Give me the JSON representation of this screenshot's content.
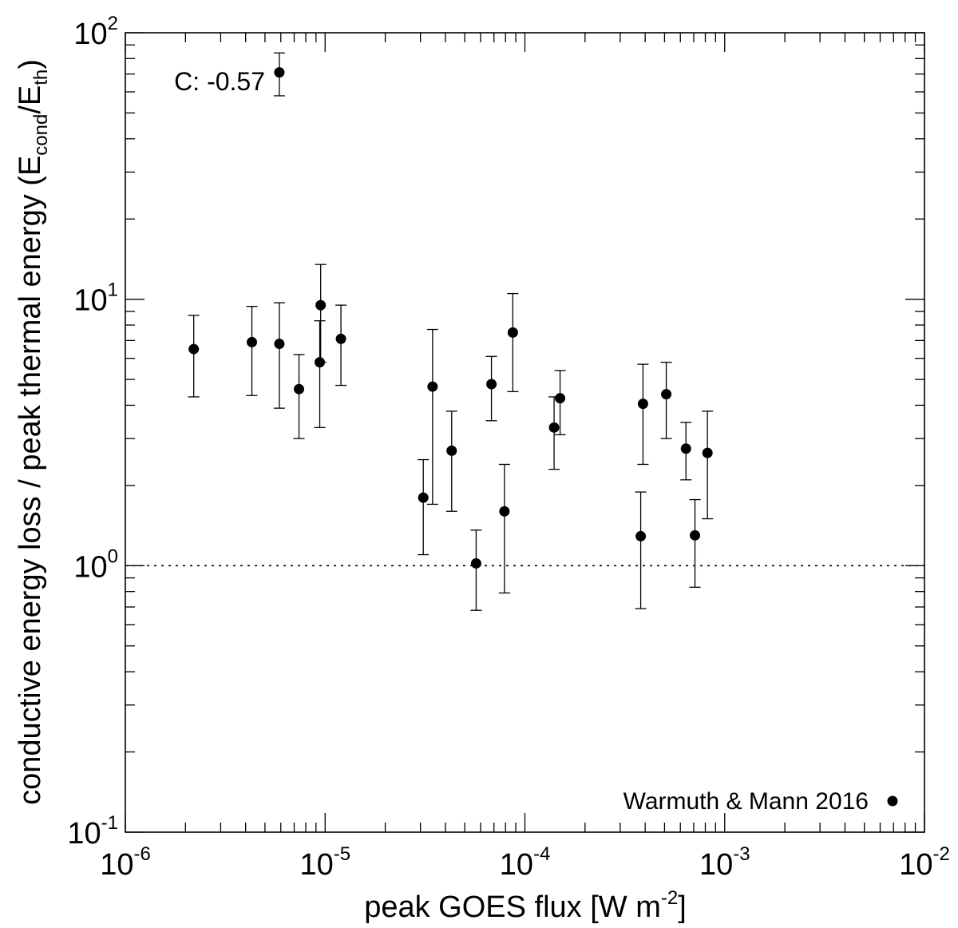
{
  "chart_data": {
    "type": "scatter",
    "title": "",
    "xlabel": {
      "main": "peak GOES flux [W m",
      "sup": "-2",
      "end": "]"
    },
    "ylabel": {
      "prefix": "conductive energy loss / peak thermal energy (E",
      "sub1": "cond",
      "mid": "/E",
      "sub2": "th",
      "end": ")"
    },
    "xscale": "log",
    "yscale": "log",
    "xlim": [
      1e-06,
      0.01
    ],
    "ylim": [
      0.1,
      100
    ],
    "x_ticks": [
      {
        "value": 1e-06,
        "base": "10",
        "exp": "-6"
      },
      {
        "value": 1e-05,
        "base": "10",
        "exp": "-5"
      },
      {
        "value": 0.0001,
        "base": "10",
        "exp": "-4"
      },
      {
        "value": 0.001,
        "base": "10",
        "exp": "-3"
      },
      {
        "value": 0.01,
        "base": "10",
        "exp": "-2"
      }
    ],
    "y_ticks": [
      {
        "value": 0.1,
        "base": "10",
        "exp": "-1"
      },
      {
        "value": 1,
        "base": "10",
        "exp": "0"
      },
      {
        "value": 10,
        "base": "10",
        "exp": "1"
      },
      {
        "value": 100,
        "base": "10",
        "exp": "2"
      }
    ],
    "reference_line": {
      "y": 1.0,
      "style": "dotted"
    },
    "annotation": {
      "text": "C: -0.57",
      "position": "top-left"
    },
    "legend": [
      {
        "label": "Warmuth & Mann 2016",
        "marker": "filled-circle",
        "placement": "bottom-right"
      }
    ],
    "series": [
      {
        "name": "Warmuth & Mann 2016",
        "points": [
          {
            "x": 2.2e-06,
            "y": 6.5,
            "ylo": 4.3,
            "yhi": 8.7
          },
          {
            "x": 4.3e-06,
            "y": 6.9,
            "ylo": 4.35,
            "yhi": 9.4
          },
          {
            "x": 5.9e-06,
            "y": 6.8,
            "ylo": 3.9,
            "yhi": 9.7
          },
          {
            "x": 5.9e-06,
            "y": 71,
            "ylo": 58,
            "yhi": 84
          },
          {
            "x": 7.4e-06,
            "y": 4.6,
            "ylo": 3.0,
            "yhi": 6.2
          },
          {
            "x": 9.4e-06,
            "y": 5.8,
            "ylo": 3.3,
            "yhi": 8.3
          },
          {
            "x": 9.5e-06,
            "y": 9.5,
            "ylo": 5.8,
            "yhi": 13.5
          },
          {
            "x": 1.2e-05,
            "y": 7.1,
            "ylo": 4.75,
            "yhi": 9.5
          },
          {
            "x": 3.1e-05,
            "y": 1.8,
            "ylo": 1.1,
            "yhi": 2.5
          },
          {
            "x": 3.45e-05,
            "y": 4.7,
            "ylo": 1.7,
            "yhi": 7.7
          },
          {
            "x": 4.3e-05,
            "y": 2.7,
            "ylo": 1.6,
            "yhi": 3.8
          },
          {
            "x": 5.7e-05,
            "y": 1.02,
            "ylo": 0.68,
            "yhi": 1.36
          },
          {
            "x": 6.8e-05,
            "y": 4.8,
            "ylo": 3.5,
            "yhi": 6.1
          },
          {
            "x": 7.9e-05,
            "y": 1.6,
            "ylo": 0.79,
            "yhi": 2.4
          },
          {
            "x": 8.7e-05,
            "y": 7.5,
            "ylo": 4.5,
            "yhi": 10.5
          },
          {
            "x": 0.00014,
            "y": 3.3,
            "ylo": 2.3,
            "yhi": 4.3
          },
          {
            "x": 0.00015,
            "y": 4.25,
            "ylo": 3.1,
            "yhi": 5.4
          },
          {
            "x": 0.00038,
            "y": 1.29,
            "ylo": 0.69,
            "yhi": 1.89
          },
          {
            "x": 0.00039,
            "y": 4.05,
            "ylo": 2.4,
            "yhi": 5.7
          },
          {
            "x": 0.00051,
            "y": 4.4,
            "ylo": 3.0,
            "yhi": 5.8
          },
          {
            "x": 0.00064,
            "y": 2.75,
            "ylo": 2.1,
            "yhi": 3.45
          },
          {
            "x": 0.00071,
            "y": 1.3,
            "ylo": 0.83,
            "yhi": 1.77
          },
          {
            "x": 0.00082,
            "y": 2.65,
            "ylo": 1.5,
            "yhi": 3.8
          }
        ]
      }
    ]
  }
}
